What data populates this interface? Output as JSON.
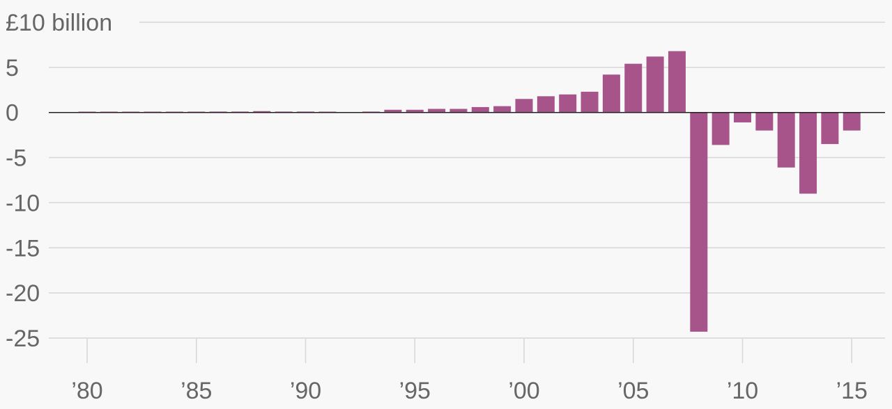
{
  "chart_data": {
    "type": "bar",
    "y_unit_label": "£10 billion",
    "ylim": [
      -25,
      10
    ],
    "y_ticks": [
      {
        "value": 10,
        "label": "£10 billion"
      },
      {
        "value": 5,
        "label": "5"
      },
      {
        "value": 0,
        "label": "0"
      },
      {
        "value": -5,
        "label": "-5"
      },
      {
        "value": -10,
        "label": "-10"
      },
      {
        "value": -15,
        "label": "-15"
      },
      {
        "value": -20,
        "label": "-20"
      },
      {
        "value": -25,
        "label": "-25"
      }
    ],
    "x_ticks": [
      {
        "year": 1980,
        "label": "’80"
      },
      {
        "year": 1985,
        "label": "’85"
      },
      {
        "year": 1990,
        "label": "’90"
      },
      {
        "year": 1995,
        "label": "’95"
      },
      {
        "year": 2000,
        "label": "’00"
      },
      {
        "year": 2005,
        "label": "’05"
      },
      {
        "year": 2010,
        "label": "’10"
      },
      {
        "year": 2015,
        "label": "’15"
      }
    ],
    "grid": true,
    "bar_color": "#a7548a",
    "series": [
      {
        "x": [
          1980,
          1981,
          1982,
          1983,
          1984,
          1985,
          1986,
          1987,
          1988,
          1989,
          1990,
          1991,
          1992,
          1993,
          1994,
          1995,
          1996,
          1997,
          1998,
          1999,
          2000,
          2001,
          2002,
          2003,
          2004,
          2005,
          2006,
          2007,
          2008,
          2009,
          2010,
          2011,
          2012,
          2013,
          2014,
          2015
        ],
        "values": [
          0.05,
          0.05,
          0.05,
          0.05,
          0.05,
          0.05,
          0.1,
          0.1,
          0.15,
          0.1,
          0.1,
          0.05,
          0.0,
          0.1,
          0.3,
          0.3,
          0.4,
          0.4,
          0.6,
          0.7,
          1.5,
          1.8,
          2.0,
          2.3,
          4.2,
          5.4,
          6.2,
          6.8,
          -24.3,
          -3.6,
          -1.1,
          -2.0,
          -6.1,
          -9.0,
          -3.5,
          -2.0
        ]
      }
    ]
  }
}
